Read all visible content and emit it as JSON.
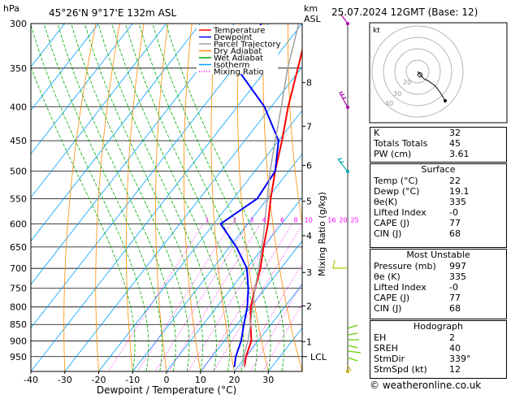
{
  "header": {
    "hpa_label": "hPa",
    "location": "45°26'N  9°17'E  132m  ASL",
    "km_label": "km",
    "asl_label": "ASL",
    "datetime": "25.07.2024  12GMT  (Base: 12)"
  },
  "legend": [
    {
      "label": "Temperature",
      "color": "#ff0000",
      "style": "solid"
    },
    {
      "label": "Dewpoint",
      "color": "#0000ff",
      "style": "solid"
    },
    {
      "label": "Parcel Trajectory",
      "color": "#a0a0a0",
      "style": "solid"
    },
    {
      "label": "Dry Adiabat",
      "color": "#ff8c00",
      "style": "solid"
    },
    {
      "label": "Wet Adiabat",
      "color": "#00aa00",
      "style": "solid"
    },
    {
      "label": "Isotherm",
      "color": "#00a0ff",
      "style": "solid"
    },
    {
      "label": "Mixing Ratio",
      "color": "#ff00ff",
      "style": "dotted"
    }
  ],
  "chart_data": {
    "type": "line",
    "xlabel": "Dewpoint / Temperature (°C)",
    "ylabel_right": "Mixing Ratio (g/kg)",
    "ylabel_left": "hPa",
    "x_ticks": [
      -40,
      -30,
      -20,
      -10,
      0,
      10,
      20,
      30
    ],
    "xlim": [
      -40,
      40
    ],
    "ylim": [
      1000,
      300
    ],
    "pressure_ticks": [
      300,
      350,
      400,
      450,
      500,
      550,
      600,
      650,
      700,
      750,
      800,
      850,
      900,
      950
    ],
    "km_ticks": [
      {
        "label": "8",
        "p": 368
      },
      {
        "label": "7",
        "p": 428
      },
      {
        "label": "6",
        "p": 490
      },
      {
        "label": "5",
        "p": 555
      },
      {
        "label": "4",
        "p": 625
      },
      {
        "label": "3",
        "p": 710
      },
      {
        "label": "2",
        "p": 797
      },
      {
        "label": "1",
        "p": 902
      }
    ],
    "lcl_label": "LCL",
    "lcl_p": 950,
    "mixing_ratio_labels": [
      "1",
      "2",
      "3",
      "4",
      "6",
      "8",
      "10",
      "16",
      "20",
      "25"
    ],
    "series": [
      {
        "name": "Temperature",
        "color": "#ff0000",
        "points": [
          [
            22,
            985
          ],
          [
            20,
            950
          ],
          [
            18,
            900
          ],
          [
            14,
            850
          ],
          [
            10,
            800
          ],
          [
            7,
            750
          ],
          [
            4,
            700
          ],
          [
            0,
            650
          ],
          [
            -4,
            600
          ],
          [
            -9,
            550
          ],
          [
            -14,
            500
          ],
          [
            -19,
            450
          ],
          [
            -25,
            400
          ],
          [
            -31,
            350
          ],
          [
            -38,
            300
          ]
        ]
      },
      {
        "name": "Dewpoint",
        "color": "#0000ff",
        "points": [
          [
            19,
            985
          ],
          [
            17,
            950
          ],
          [
            15,
            900
          ],
          [
            12,
            850
          ],
          [
            9,
            800
          ],
          [
            5,
            750
          ],
          [
            0,
            700
          ],
          [
            -8,
            650
          ],
          [
            -18,
            600
          ],
          [
            -13,
            550
          ],
          [
            -14,
            500
          ],
          [
            -20,
            450
          ],
          [
            -32,
            400
          ],
          [
            -49,
            350
          ],
          [
            -52,
            300
          ]
        ]
      },
      {
        "name": "Parcel Trajectory",
        "color": "#a0a0a0",
        "points": [
          [
            22,
            985
          ],
          [
            19.5,
            955
          ],
          [
            17,
            900
          ],
          [
            14,
            850
          ],
          [
            10.5,
            800
          ],
          [
            7,
            750
          ],
          [
            3.5,
            700
          ],
          [
            -0.5,
            650
          ],
          [
            -5,
            600
          ],
          [
            -10,
            550
          ],
          [
            -15.5,
            500
          ],
          [
            -21,
            450
          ],
          [
            -27,
            400
          ],
          [
            -34,
            350
          ],
          [
            -41,
            300
          ]
        ]
      }
    ]
  },
  "hodograph": {
    "label": "kt",
    "ring_labels": [
      "40",
      "30",
      "20"
    ]
  },
  "indices": [
    {
      "label": "K",
      "value": "32"
    },
    {
      "label": "Totals Totals",
      "value": "45"
    },
    {
      "label": "PW (cm)",
      "value": "3.61"
    }
  ],
  "surface": {
    "title": "Surface",
    "rows": [
      {
        "label": "Temp (°C)",
        "value": "22"
      },
      {
        "label": "Dewp (°C)",
        "value": "19.1"
      },
      {
        "label": "θe(K)",
        "value": "335"
      },
      {
        "label": "Lifted Index",
        "value": "-0"
      },
      {
        "label": "CAPE (J)",
        "value": "77"
      },
      {
        "label": "CIN (J)",
        "value": "68"
      }
    ]
  },
  "most_unstable": {
    "title": "Most Unstable",
    "rows": [
      {
        "label": "Pressure (mb)",
        "value": "997"
      },
      {
        "label": "θe (K)",
        "value": "335"
      },
      {
        "label": "Lifted Index",
        "value": "-0"
      },
      {
        "label": "CAPE (J)",
        "value": "77"
      },
      {
        "label": "CIN (J)",
        "value": "68"
      }
    ]
  },
  "hodograph_table": {
    "title": "Hodograph",
    "rows": [
      {
        "label": "EH",
        "value": "2"
      },
      {
        "label": "SREH",
        "value": "40"
      },
      {
        "label": "StmDir",
        "value": "339°"
      },
      {
        "label": "StmSpd (kt)",
        "value": "12"
      }
    ]
  },
  "footer": "© weatheronline.co.uk"
}
